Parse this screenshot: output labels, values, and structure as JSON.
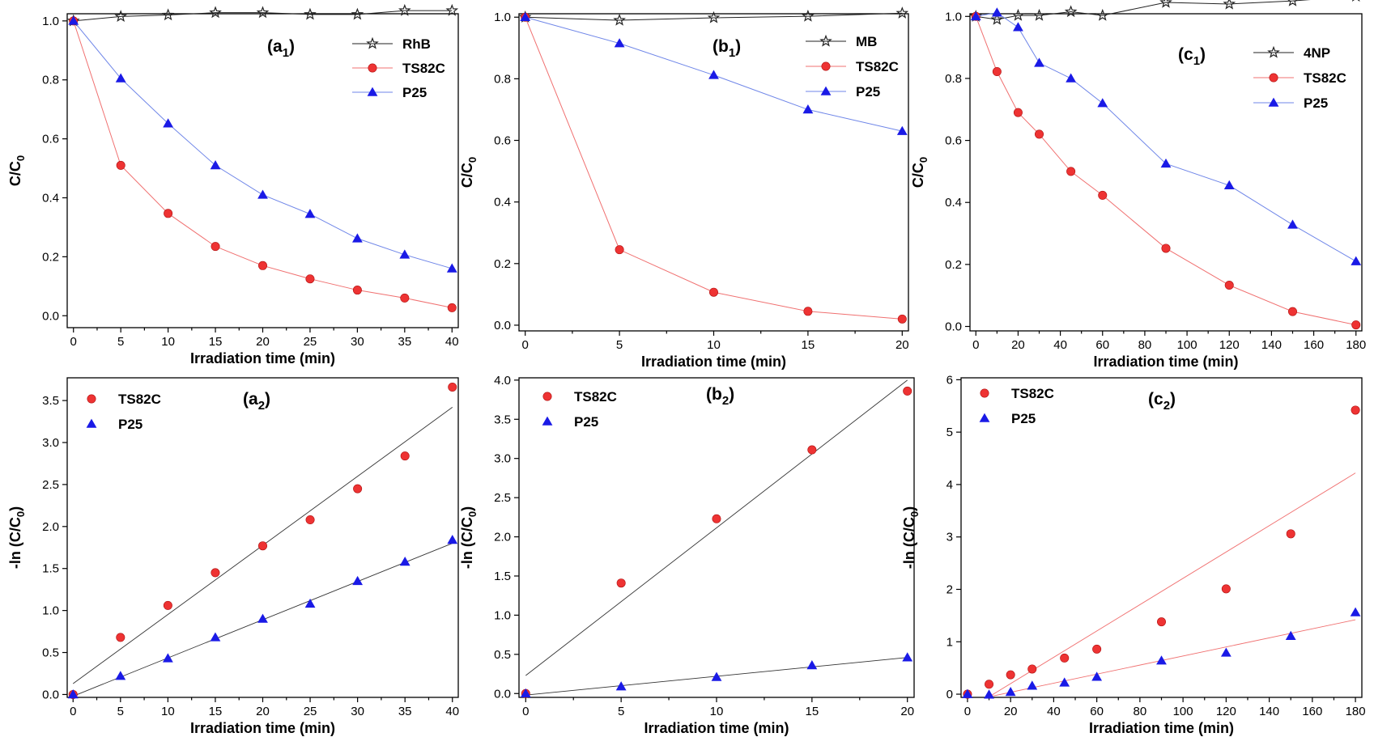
{
  "colors": {
    "black": "#222222",
    "red": "#ee3333",
    "red_line": "#f07070",
    "blue": "#1a1ae6",
    "blue_line": "#6f86e8",
    "fit_line": "#333333"
  },
  "chart_data": [
    {
      "id": "a1",
      "type": "line",
      "panel_label": "(a",
      "panel_sub": "1",
      "panel_suffix": ")",
      "xlabel": "Irradiation time (min)",
      "ylabel_main": "C/C",
      "ylabel_sub": "0",
      "xlim": [
        0,
        40
      ],
      "ylim": [
        0,
        1.0
      ],
      "xticks": [
        0,
        5,
        10,
        15,
        20,
        25,
        30,
        35,
        40
      ],
      "xtick_labels": [
        "0",
        "5",
        "10",
        "15",
        "20",
        "25",
        "30",
        "35",
        "40"
      ],
      "yticks": [
        0,
        0.2,
        0.4,
        0.6,
        0.8,
        1.0
      ],
      "ytick_labels": [
        "0.0",
        "0.2",
        "0.4",
        "0.6",
        "0.8",
        "1.0"
      ],
      "x": [
        0,
        5,
        10,
        15,
        20,
        25,
        30,
        35,
        40
      ],
      "series": [
        {
          "name": "RhB",
          "marker": "star",
          "color_key": "black",
          "values": [
            1.0,
            1.015,
            1.02,
            1.028,
            1.028,
            1.022,
            1.022,
            1.035,
            1.035
          ]
        },
        {
          "name": "TS82C",
          "marker": "circle",
          "color_key": "red",
          "values": [
            1.0,
            0.51,
            0.347,
            0.235,
            0.17,
            0.125,
            0.087,
            0.06,
            0.027
          ]
        },
        {
          "name": "P25",
          "marker": "triangle",
          "color_key": "blue",
          "values": [
            1.0,
            0.805,
            0.652,
            0.51,
            0.41,
            0.345,
            0.262,
            0.207,
            0.16
          ]
        }
      ],
      "legend_position": "top-right"
    },
    {
      "id": "b1",
      "type": "line",
      "panel_label": "(b",
      "panel_sub": "1",
      "panel_suffix": ")",
      "xlabel": "Irradiation time (min)",
      "ylabel_main": "C/C",
      "ylabel_sub": "0",
      "xlim": [
        0,
        20
      ],
      "ylim": [
        0,
        1.0
      ],
      "xticks": [
        0,
        5,
        10,
        15,
        20
      ],
      "xtick_labels": [
        "0",
        "5",
        "10",
        "15",
        "20"
      ],
      "yticks": [
        0,
        0.2,
        0.4,
        0.6,
        0.8,
        1.0
      ],
      "ytick_labels": [
        "0.0",
        "0.2",
        "0.4",
        "0.6",
        "0.8",
        "1.0"
      ],
      "x": [
        0,
        5,
        10,
        15,
        20
      ],
      "series": [
        {
          "name": "MB",
          "marker": "star",
          "color_key": "black",
          "values": [
            1.0,
            0.99,
            0.998,
            1.003,
            1.013
          ]
        },
        {
          "name": "TS82C",
          "marker": "circle",
          "color_key": "red",
          "values": [
            1.0,
            0.245,
            0.107,
            0.045,
            0.02
          ]
        },
        {
          "name": "P25",
          "marker": "triangle",
          "color_key": "blue",
          "values": [
            1.0,
            0.915,
            0.812,
            0.7,
            0.63
          ]
        }
      ],
      "legend_position": "top-right"
    },
    {
      "id": "c1",
      "type": "line",
      "panel_label": "(c",
      "panel_sub": "1",
      "panel_suffix": ")",
      "xlabel": "Irradiation time (min)",
      "ylabel_main": "C/C",
      "ylabel_sub": "0",
      "xlim": [
        0,
        180
      ],
      "ylim": [
        0,
        1.0
      ],
      "xticks": [
        0,
        20,
        40,
        60,
        80,
        100,
        120,
        140,
        160,
        180
      ],
      "xtick_labels": [
        "0",
        "20",
        "40",
        "60",
        "80",
        "100",
        "120",
        "140",
        "160",
        "180"
      ],
      "yticks": [
        0,
        0.2,
        0.4,
        0.6,
        0.8,
        1.0
      ],
      "ytick_labels": [
        "0.0",
        "0.2",
        "0.4",
        "0.6",
        "0.8",
        "1.0"
      ],
      "series": [
        {
          "name": "4NP",
          "marker": "star",
          "color_key": "black",
          "x": [
            0,
            10,
            20,
            30,
            45,
            60,
            90,
            120,
            150,
            180
          ],
          "values": [
            1.0,
            0.99,
            1.003,
            1.003,
            1.015,
            1.003,
            1.045,
            1.04,
            1.05,
            1.065
          ]
        },
        {
          "name": "TS82C",
          "marker": "circle",
          "color_key": "red",
          "x": [
            0,
            10,
            20,
            30,
            45,
            60,
            90,
            120,
            150,
            180
          ],
          "values": [
            1.0,
            0.822,
            0.69,
            0.62,
            0.5,
            0.423,
            0.252,
            0.133,
            0.048,
            0.005
          ]
        },
        {
          "name": "P25",
          "marker": "triangle",
          "color_key": "blue",
          "x": [
            0,
            10,
            20,
            30,
            45,
            60,
            90,
            120,
            150,
            180
          ],
          "values": [
            1.0,
            1.012,
            0.965,
            0.85,
            0.8,
            0.72,
            0.525,
            0.455,
            0.328,
            0.21
          ]
        }
      ],
      "legend_position": "top-right"
    },
    {
      "id": "a2",
      "type": "scatter",
      "panel_label": "(a",
      "panel_sub": "2",
      "panel_suffix": ")",
      "xlabel": "Irradiation time (min)",
      "ylabel_main": "-ln (C/C",
      "ylabel_sub": "0",
      "ylabel_suffix": ")",
      "xlim": [
        0,
        40
      ],
      "ylim": [
        0,
        3.75
      ],
      "xticks": [
        0,
        5,
        10,
        15,
        20,
        25,
        30,
        35,
        40
      ],
      "xtick_labels": [
        "0",
        "5",
        "10",
        "15",
        "20",
        "25",
        "30",
        "35",
        "40"
      ],
      "yticks": [
        0,
        0.5,
        1.0,
        1.5,
        2.0,
        2.5,
        3.0,
        3.5
      ],
      "ytick_labels": [
        "0.0",
        "0.5",
        "1.0",
        "1.5",
        "2.0",
        "2.5",
        "3.0",
        "3.5"
      ],
      "x": [
        0,
        5,
        10,
        15,
        20,
        25,
        30,
        35,
        40
      ],
      "series": [
        {
          "name": "TS82C",
          "marker": "circle",
          "color_key": "red",
          "values": [
            0.0,
            0.68,
            1.06,
            1.45,
            1.77,
            2.08,
            2.45,
            2.84,
            3.66
          ],
          "fit": [
            [
              0,
              0.13
            ],
            [
              40,
              3.42
            ]
          ],
          "fit_color_key": "fit_line"
        },
        {
          "name": "P25",
          "marker": "triangle",
          "color_key": "blue",
          "values": [
            0.0,
            0.22,
            0.43,
            0.68,
            0.9,
            1.08,
            1.35,
            1.58,
            1.84
          ],
          "fit": [
            [
              0,
              -0.02
            ],
            [
              40,
              1.8
            ]
          ],
          "fit_color_key": "fit_line"
        }
      ],
      "legend_position": "top-left"
    },
    {
      "id": "b2",
      "type": "scatter",
      "panel_label": "(b",
      "panel_sub": "2",
      "panel_suffix": ")",
      "xlabel": "Irradiation time (min)",
      "ylabel_main": "-ln (C/C",
      "ylabel_sub": "0",
      "ylabel_suffix": ")",
      "xlim": [
        0,
        20
      ],
      "ylim": [
        0,
        4.0
      ],
      "xticks": [
        0,
        5,
        10,
        15,
        20
      ],
      "xtick_labels": [
        "0",
        "5",
        "10",
        "15",
        "20"
      ],
      "yticks": [
        0,
        0.5,
        1.0,
        1.5,
        2.0,
        2.5,
        3.0,
        3.5,
        4.0
      ],
      "ytick_labels": [
        "0.0",
        "0.5",
        "1.0",
        "1.5",
        "2.0",
        "2.5",
        "3.0",
        "3.5",
        "4.0"
      ],
      "x": [
        0,
        5,
        10,
        15,
        20
      ],
      "series": [
        {
          "name": "TS82C",
          "marker": "circle",
          "color_key": "red",
          "values": [
            0.0,
            1.41,
            2.23,
            3.11,
            3.86
          ],
          "fit": [
            [
              0,
              0.23
            ],
            [
              20,
              4.0
            ]
          ],
          "fit_color_key": "fit_line"
        },
        {
          "name": "P25",
          "marker": "triangle",
          "color_key": "blue",
          "values": [
            0.0,
            0.09,
            0.21,
            0.36,
            0.46
          ],
          "fit": [
            [
              0,
              -0.02
            ],
            [
              20,
              0.46
            ]
          ],
          "fit_color_key": "fit_line"
        }
      ],
      "legend_position": "top-left"
    },
    {
      "id": "c2",
      "type": "scatter",
      "panel_label": "(c",
      "panel_sub": "2",
      "panel_suffix": ")",
      "xlabel": "Irradiation time (min)",
      "ylabel_main": "-ln (C/C",
      "ylabel_sub": "0",
      "ylabel_suffix": ")",
      "xlim": [
        0,
        180
      ],
      "ylim": [
        0,
        6
      ],
      "xticks": [
        0,
        20,
        40,
        60,
        80,
        100,
        120,
        140,
        160,
        180
      ],
      "xtick_labels": [
        "0",
        "20",
        "40",
        "60",
        "80",
        "100",
        "120",
        "140",
        "160",
        "180"
      ],
      "yticks": [
        0,
        1,
        2,
        3,
        4,
        5,
        6
      ],
      "ytick_labels": [
        "0",
        "1",
        "2",
        "3",
        "4",
        "5",
        "6"
      ],
      "series": [
        {
          "name": "TS82C",
          "marker": "circle",
          "color_key": "red",
          "x": [
            0,
            10,
            20,
            30,
            45,
            60,
            90,
            120,
            150,
            180
          ],
          "values": [
            0.0,
            0.19,
            0.37,
            0.48,
            0.69,
            0.86,
            1.38,
            2.01,
            3.06,
            5.42
          ],
          "fit": [
            [
              10,
              -0.05
            ],
            [
              180,
              4.22
            ]
          ],
          "fit_color_key": "red_line"
        },
        {
          "name": "P25",
          "marker": "triangle",
          "color_key": "blue",
          "x": [
            0,
            10,
            20,
            30,
            45,
            60,
            90,
            120,
            150,
            180
          ],
          "values": [
            0.0,
            -0.01,
            0.04,
            0.16,
            0.22,
            0.33,
            0.64,
            0.79,
            1.11,
            1.56
          ],
          "fit": [
            [
              10,
              -0.05
            ],
            [
              180,
              1.42
            ]
          ],
          "fit_color_key": "red_line"
        }
      ],
      "legend_position": "top-left"
    }
  ]
}
